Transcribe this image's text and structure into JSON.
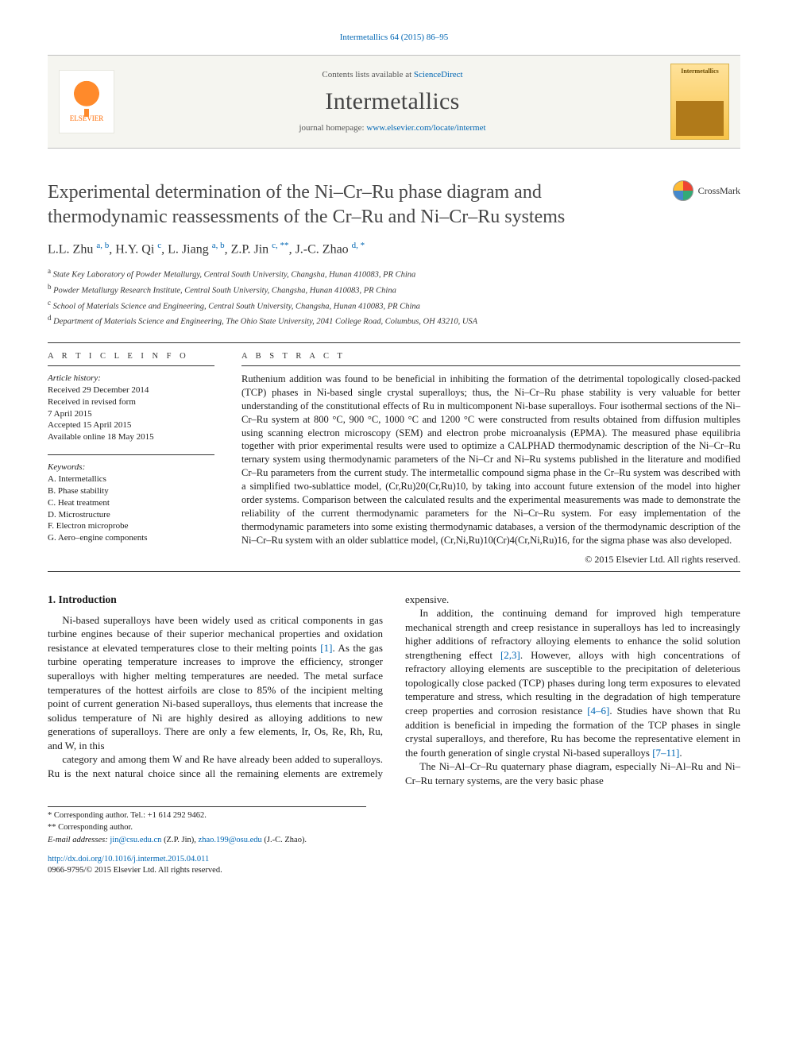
{
  "citation": "Intermetallics 64 (2015) 86–95",
  "header": {
    "publisher": "ELSEVIER",
    "contents_prefix": "Contents lists available at ",
    "contents_link": "ScienceDirect",
    "journal": "Intermetallics",
    "homepage_prefix": "journal homepage: ",
    "homepage_url": "www.elsevier.com/locate/intermet",
    "cover_label": "Intermetallics"
  },
  "colors": {
    "link": "#0066b3",
    "elsevier_orange": "#ff6a00",
    "cover_bg_top": "#ffe29a",
    "cover_bg_bottom": "#f7c349",
    "rule": "#333333",
    "band_bg": "#f5f5f0",
    "title_grey": "#464646"
  },
  "title": "Experimental determination of the Ni–Cr–Ru phase diagram and thermodynamic reassessments of the Cr–Ru and Ni–Cr–Ru systems",
  "crossmark": "CrossMark",
  "authors_html": "L.L. Zhu <sup class=\"aff\">a, b</sup>, H.Y. Qi <sup class=\"aff\">c</sup>, L. Jiang <sup class=\"aff\">a, b</sup>, Z.P. Jin <sup class=\"aff\">c, **</sup>, J.-C. Zhao <sup class=\"aff\">d, *</sup>",
  "affiliations": [
    {
      "sup": "a",
      "text": "State Key Laboratory of Powder Metallurgy, Central South University, Changsha, Hunan 410083, PR China"
    },
    {
      "sup": "b",
      "text": "Powder Metallurgy Research Institute, Central South University, Changsha, Hunan 410083, PR China"
    },
    {
      "sup": "c",
      "text": "School of Materials Science and Engineering, Central South University, Changsha, Hunan 410083, PR China"
    },
    {
      "sup": "d",
      "text": "Department of Materials Science and Engineering, The Ohio State University, 2041 College Road, Columbus, OH 43210, USA"
    }
  ],
  "article_info": {
    "heading": "A R T I C L E  I N F O",
    "history_label": "Article history:",
    "history": [
      "Received 29 December 2014",
      "Received in revised form",
      "7 April 2015",
      "Accepted 15 April 2015",
      "Available online 18 May 2015"
    ],
    "keywords_label": "Keywords:",
    "keywords": [
      "A. Intermetallics",
      "B. Phase stability",
      "C. Heat treatment",
      "D. Microstructure",
      "F. Electron microprobe",
      "G. Aero–engine components"
    ]
  },
  "abstract": {
    "heading": "A B S T R A C T",
    "text": "Ruthenium addition was found to be beneficial in inhibiting the formation of the detrimental topologically closed-packed (TCP) phases in Ni-based single crystal superalloys; thus, the Ni–Cr–Ru phase stability is very valuable for better understanding of the constitutional effects of Ru in multicomponent Ni-base superalloys. Four isothermal sections of the Ni–Cr–Ru system at 800 °C, 900 °C, 1000 °C and 1200 °C were constructed from results obtained from diffusion multiples using scanning electron microscopy (SEM) and electron probe microanalysis (EPMA). The measured phase equilibria together with prior experimental results were used to optimize a CALPHAD thermodynamic description of the Ni–Cr–Ru ternary system using thermodynamic parameters of the Ni–Cr and Ni–Ru systems published in the literature and modified Cr–Ru parameters from the current study. The intermetallic compound sigma phase in the Cr–Ru system was described with a simplified two-sublattice model, (Cr,Ru)20(Cr,Ru)10, by taking into account future extension of the model into higher order systems. Comparison between the calculated results and the experimental measurements was made to demonstrate the reliability of the current thermodynamic parameters for the Ni–Cr–Ru system. For easy implementation of the thermodynamic parameters into some existing thermodynamic databases, a version of the thermodynamic description of the Ni–Cr–Ru system with an older sublattice model, (Cr,Ni,Ru)10(Cr)4(Cr,Ni,Ru)16, for the sigma phase was also developed.",
    "copyright": "© 2015 Elsevier Ltd. All rights reserved."
  },
  "body": {
    "section_number": "1.",
    "section_title": "Introduction",
    "para1": "Ni-based superalloys have been widely used as critical components in gas turbine engines because of their superior mechanical properties and oxidation resistance at elevated temperatures close to their melting points [1]. As the gas turbine operating temperature increases to improve the efficiency, stronger superalloys with higher melting temperatures are needed. The metal surface temperatures of the hottest airfoils are close to 85% of the incipient melting point of current generation Ni-based superalloys, thus elements that increase the solidus temperature of Ni are highly desired as alloying additions to new generations of superalloys. There are only a few elements, Ir, Os, Re, Rh, Ru, and W, in this",
    "para2": "category and among them W and Re have already been added to superalloys. Ru is the next natural choice since all the remaining elements are extremely expensive.",
    "para3": "In addition, the continuing demand for improved high temperature mechanical strength and creep resistance in superalloys has led to increasingly higher additions of refractory alloying elements to enhance the solid solution strengthening effect [2,3]. However, alloys with high concentrations of refractory alloying elements are susceptible to the precipitation of deleterious topologically close packed (TCP) phases during long term exposures to elevated temperature and stress, which resulting in the degradation of high temperature creep properties and corrosion resistance [4–6]. Studies have shown that Ru addition is beneficial in impeding the formation of the TCP phases in single crystal superalloys, and therefore, Ru has become the representative element in the fourth generation of single crystal Ni-based superalloys [7–11].",
    "para4": "The Ni–Al–Cr–Ru quaternary phase diagram, especially Ni–Al–Ru and Ni–Cr–Ru ternary systems, are the very basic phase",
    "citations": {
      "c1": "[1]",
      "c23": "[2,3]",
      "c46": "[4–6]",
      "c711": "[7–11]"
    }
  },
  "footnotes": {
    "corr1": "* Corresponding author. Tel.: +1 614 292 9462.",
    "corr2": "** Corresponding author.",
    "email_label": "E-mail addresses:",
    "email1": "jin@csu.edu.cn",
    "email1_who": "(Z.P. Jin),",
    "email2": "zhao.199@osu.edu",
    "email2_who": "(J.-C. Zhao)."
  },
  "doi": {
    "url": "http://dx.doi.org/10.1016/j.intermet.2015.04.011",
    "issn_line": "0966-9795/© 2015 Elsevier Ltd. All rights reserved."
  }
}
